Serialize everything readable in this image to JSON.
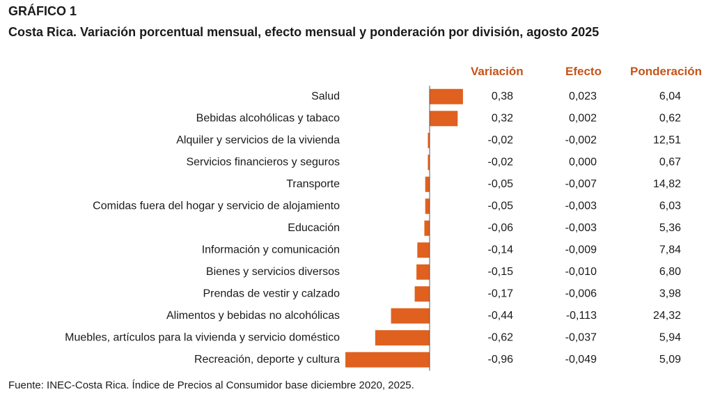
{
  "header": {
    "label": "GRÁFICO 1",
    "title": "Costa Rica. Variación porcentual mensual, efecto mensual y ponderación por división, agosto 2025"
  },
  "columns": {
    "variacion": "Variación",
    "efecto": "Efecto",
    "ponderacion": "Ponderación"
  },
  "footer": {
    "source": "Fuente: INEC-Costa Rica. Índice de Precios al Consumidor base diciembre 2020, 2025."
  },
  "colors": {
    "bar": "#e0601f",
    "header": "#c65317",
    "axis": "#555555",
    "text": "#1a1a1a"
  },
  "chart_data": {
    "type": "bar",
    "orientation": "horizontal",
    "categories": [
      "Salud",
      "Bebidas alcohólicas y tabaco",
      "Alquiler y servicios de la vivienda",
      "Servicios financieros y seguros",
      "Transporte",
      "Comidas fuera del hogar y servicio de alojamiento",
      "Educación",
      "Información y comunicación",
      "Bienes y servicios diversos",
      "Prendas de vestir y calzado",
      "Alimentos y bebidas no alcohólicas",
      "Muebles, artículos para la vivienda y servicio doméstico",
      "Recreación, deporte y cultura"
    ],
    "values": [
      0.38,
      0.32,
      -0.02,
      -0.02,
      -0.05,
      -0.05,
      -0.06,
      -0.14,
      -0.15,
      -0.17,
      -0.44,
      -0.62,
      -0.96
    ],
    "table": {
      "variacion": [
        "0,38",
        "0,32",
        "-0,02",
        "-0,02",
        "-0,05",
        "-0,05",
        "-0,06",
        "-0,14",
        "-0,15",
        "-0,17",
        "-0,44",
        "-0,62",
        "-0,96"
      ],
      "efecto": [
        "0,023",
        "0,002",
        "-0,002",
        "0,000",
        "-0,007",
        "-0,003",
        "-0,003",
        "-0,009",
        "-0,010",
        "-0,006",
        "-0,113",
        "-0,037",
        "-0,049"
      ],
      "ponderacion": [
        "6,04",
        "0,62",
        "12,51",
        "0,67",
        "14,82",
        "6,03",
        "5,36",
        "7,84",
        "6,80",
        "3,98",
        "24,32",
        "5,94",
        "5,09"
      ]
    },
    "xlim": [
      -0.96,
      0.38
    ],
    "grid": false
  }
}
